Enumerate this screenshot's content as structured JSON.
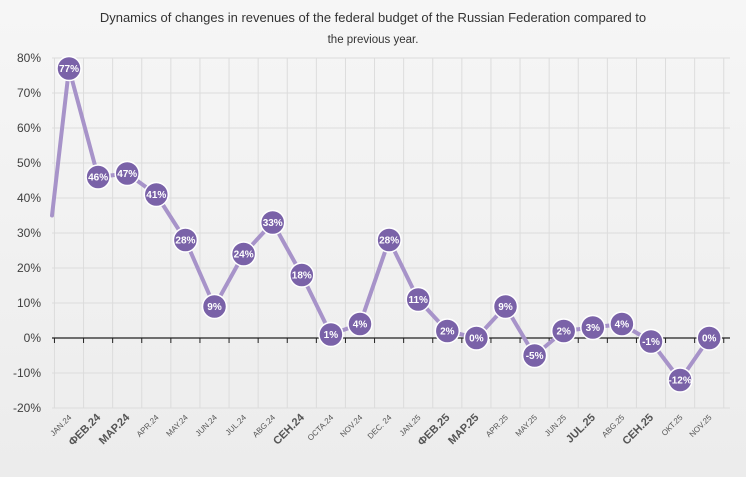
{
  "chart_data": {
    "type": "line",
    "title": "Dynamics of changes in revenues of the federal budget of the Russian Federation compared to",
    "subtitle": "the previous year.",
    "xlabel": "",
    "ylabel": "",
    "ylim": [
      -20,
      80
    ],
    "yticks": [
      "-20%",
      "-10%",
      "0%",
      "10%",
      "20%",
      "30%",
      "40%",
      "50%",
      "60%",
      "70%",
      "80%"
    ],
    "grid": true,
    "legend": "none",
    "colors": {
      "line": "#a793c9",
      "marker_fill": "#7a62a8",
      "marker_stroke": "#ffffff"
    },
    "categories": [
      "JAN.24",
      "ФЕВ.24",
      "МАР.24",
      "APR.24",
      "MAY.24",
      "JUN.24",
      "JUL.24",
      "ABG.24",
      "СЕН.24",
      "OCTA.24",
      "NOV.24",
      "DEC. 24",
      "JAN.25",
      "ФЕВ.25",
      "МАР.25",
      "APR.25",
      "MAY.25",
      "JUN.25",
      "JUL.25",
      "ABG.25",
      "СЕН.25",
      "ОКТ.25",
      "NOV.25"
    ],
    "big_categories": [
      "ФЕВ.24",
      "МАР.24",
      "СЕН.24",
      "ФЕВ.25",
      "МАР.25",
      "JUL.25",
      "СЕН.25"
    ],
    "series": [
      {
        "values": [
          77,
          46,
          47,
          41,
          28,
          9,
          24,
          33,
          18,
          1,
          4,
          28,
          11,
          2,
          0,
          9,
          -5,
          2,
          3,
          4,
          -1,
          -12,
          0
        ],
        "labels": [
          "77%",
          "46%",
          "47%",
          "41%",
          "28%",
          "9%",
          "24%",
          "33%",
          "18%",
          "1%",
          "4%",
          "28%",
          "11%",
          "2%",
          "0%",
          "9%",
          "-5%",
          "2%",
          "3%",
          "4%",
          "-1%",
          "-12%",
          "0%"
        ]
      }
    ],
    "line_start_value": 35
  }
}
